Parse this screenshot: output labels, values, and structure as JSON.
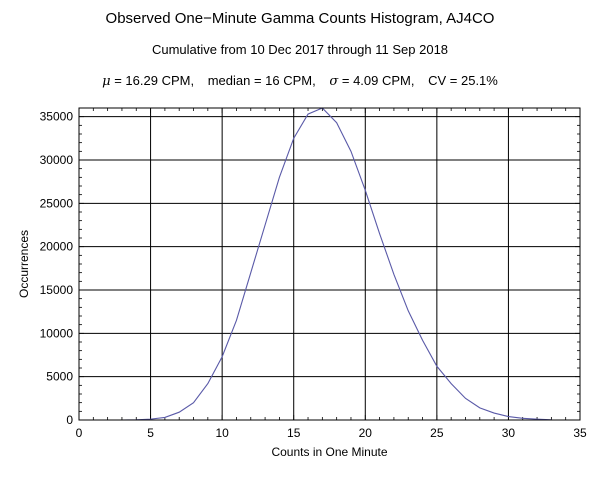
{
  "chart_data": {
    "type": "line",
    "title": "Observed One−Minute Gamma Counts Histogram, AJ4CO",
    "subtitle": "Cumulative from 10 Dec 2017 through 11 Sep 2018",
    "stats": {
      "mu_symbol": "μ",
      "mu_text": "= 16.29 CPM,",
      "median_text": "median = 16 CPM,",
      "sigma_symbol": "σ",
      "sigma_text": "= 4.09 CPM,",
      "cv_text": "CV = 25.1%"
    },
    "xlabel": "Counts in One Minute",
    "ylabel": "Occurrences",
    "xlim": [
      0,
      35
    ],
    "ylim": [
      0,
      36000
    ],
    "xticks": [
      0,
      5,
      10,
      15,
      20,
      25,
      30,
      35
    ],
    "yticks": [
      0,
      5000,
      10000,
      15000,
      20000,
      25000,
      30000,
      35000
    ],
    "grid": true,
    "line_color": "#5a5aa8",
    "series": [
      {
        "x": [
          3,
          4,
          5,
          6,
          7,
          8,
          9,
          10,
          11,
          12,
          13,
          14,
          15,
          16,
          17,
          18,
          19,
          20,
          21,
          22,
          23,
          24,
          25,
          26,
          27,
          28,
          29,
          30,
          31,
          32,
          33
        ],
        "values": [
          0,
          30,
          100,
          300,
          900,
          2000,
          4200,
          7300,
          11500,
          17000,
          22500,
          28000,
          32500,
          35300,
          36000,
          34300,
          31000,
          26500,
          21500,
          16800,
          12600,
          9200,
          6200,
          4200,
          2500,
          1400,
          800,
          400,
          200,
          100,
          30
        ]
      }
    ]
  }
}
